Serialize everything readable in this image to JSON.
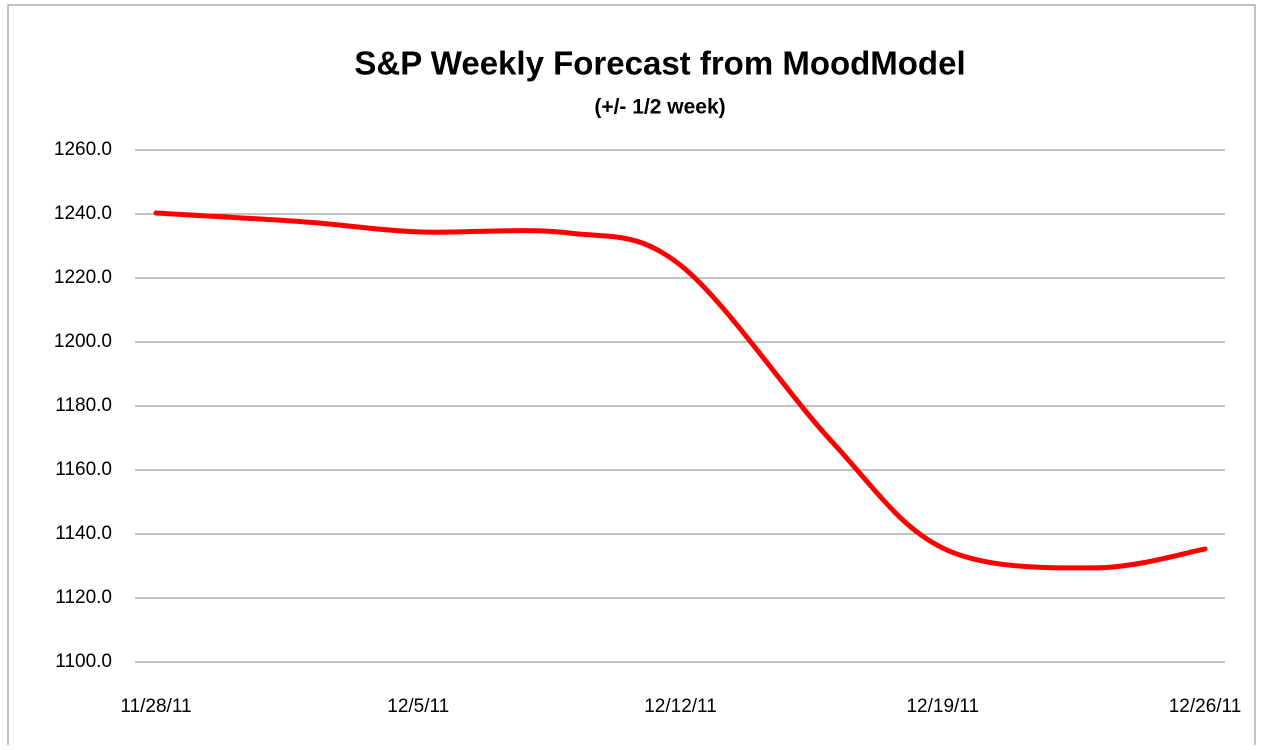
{
  "chart_data": {
    "type": "line",
    "title": "S&P Weekly Forecast from MoodModel",
    "subtitle": "(+/- 1/2  week)",
    "x": [
      "11/28/11",
      "12/2/11",
      "12/5/11",
      "12/9/11",
      "12/12/11",
      "12/16/11",
      "12/19/11",
      "12/23/11",
      "12/26/11"
    ],
    "series": [
      {
        "name": "S&P",
        "color": "#ff0000",
        "values": [
          1240.3,
          1237.5,
          1234.4,
          1234.1,
          1224,
          1169.4,
          1135.6,
          1129.4,
          1135.3
        ]
      }
    ],
    "xlim": [
      "11/28/11",
      "12/26/11"
    ],
    "xticks": [
      "11/28/11",
      "12/5/11",
      "12/12/11",
      "12/19/11",
      "12/26/11"
    ],
    "ylim": [
      1100,
      1260
    ],
    "yticks": [
      {
        "value": 1100,
        "label": "1100.0"
      },
      {
        "value": 1120,
        "label": "1120.0"
      },
      {
        "value": 1140,
        "label": "1140.0"
      },
      {
        "value": 1160,
        "label": "1160.0"
      },
      {
        "value": 1180,
        "label": "1180.0"
      },
      {
        "value": 1200,
        "label": "1200.0"
      },
      {
        "value": 1220,
        "label": "1220.0"
      },
      {
        "value": 1240,
        "label": "1240.0"
      },
      {
        "value": 1260,
        "label": "1260.0"
      }
    ],
    "grid": true,
    "smooth": true
  }
}
